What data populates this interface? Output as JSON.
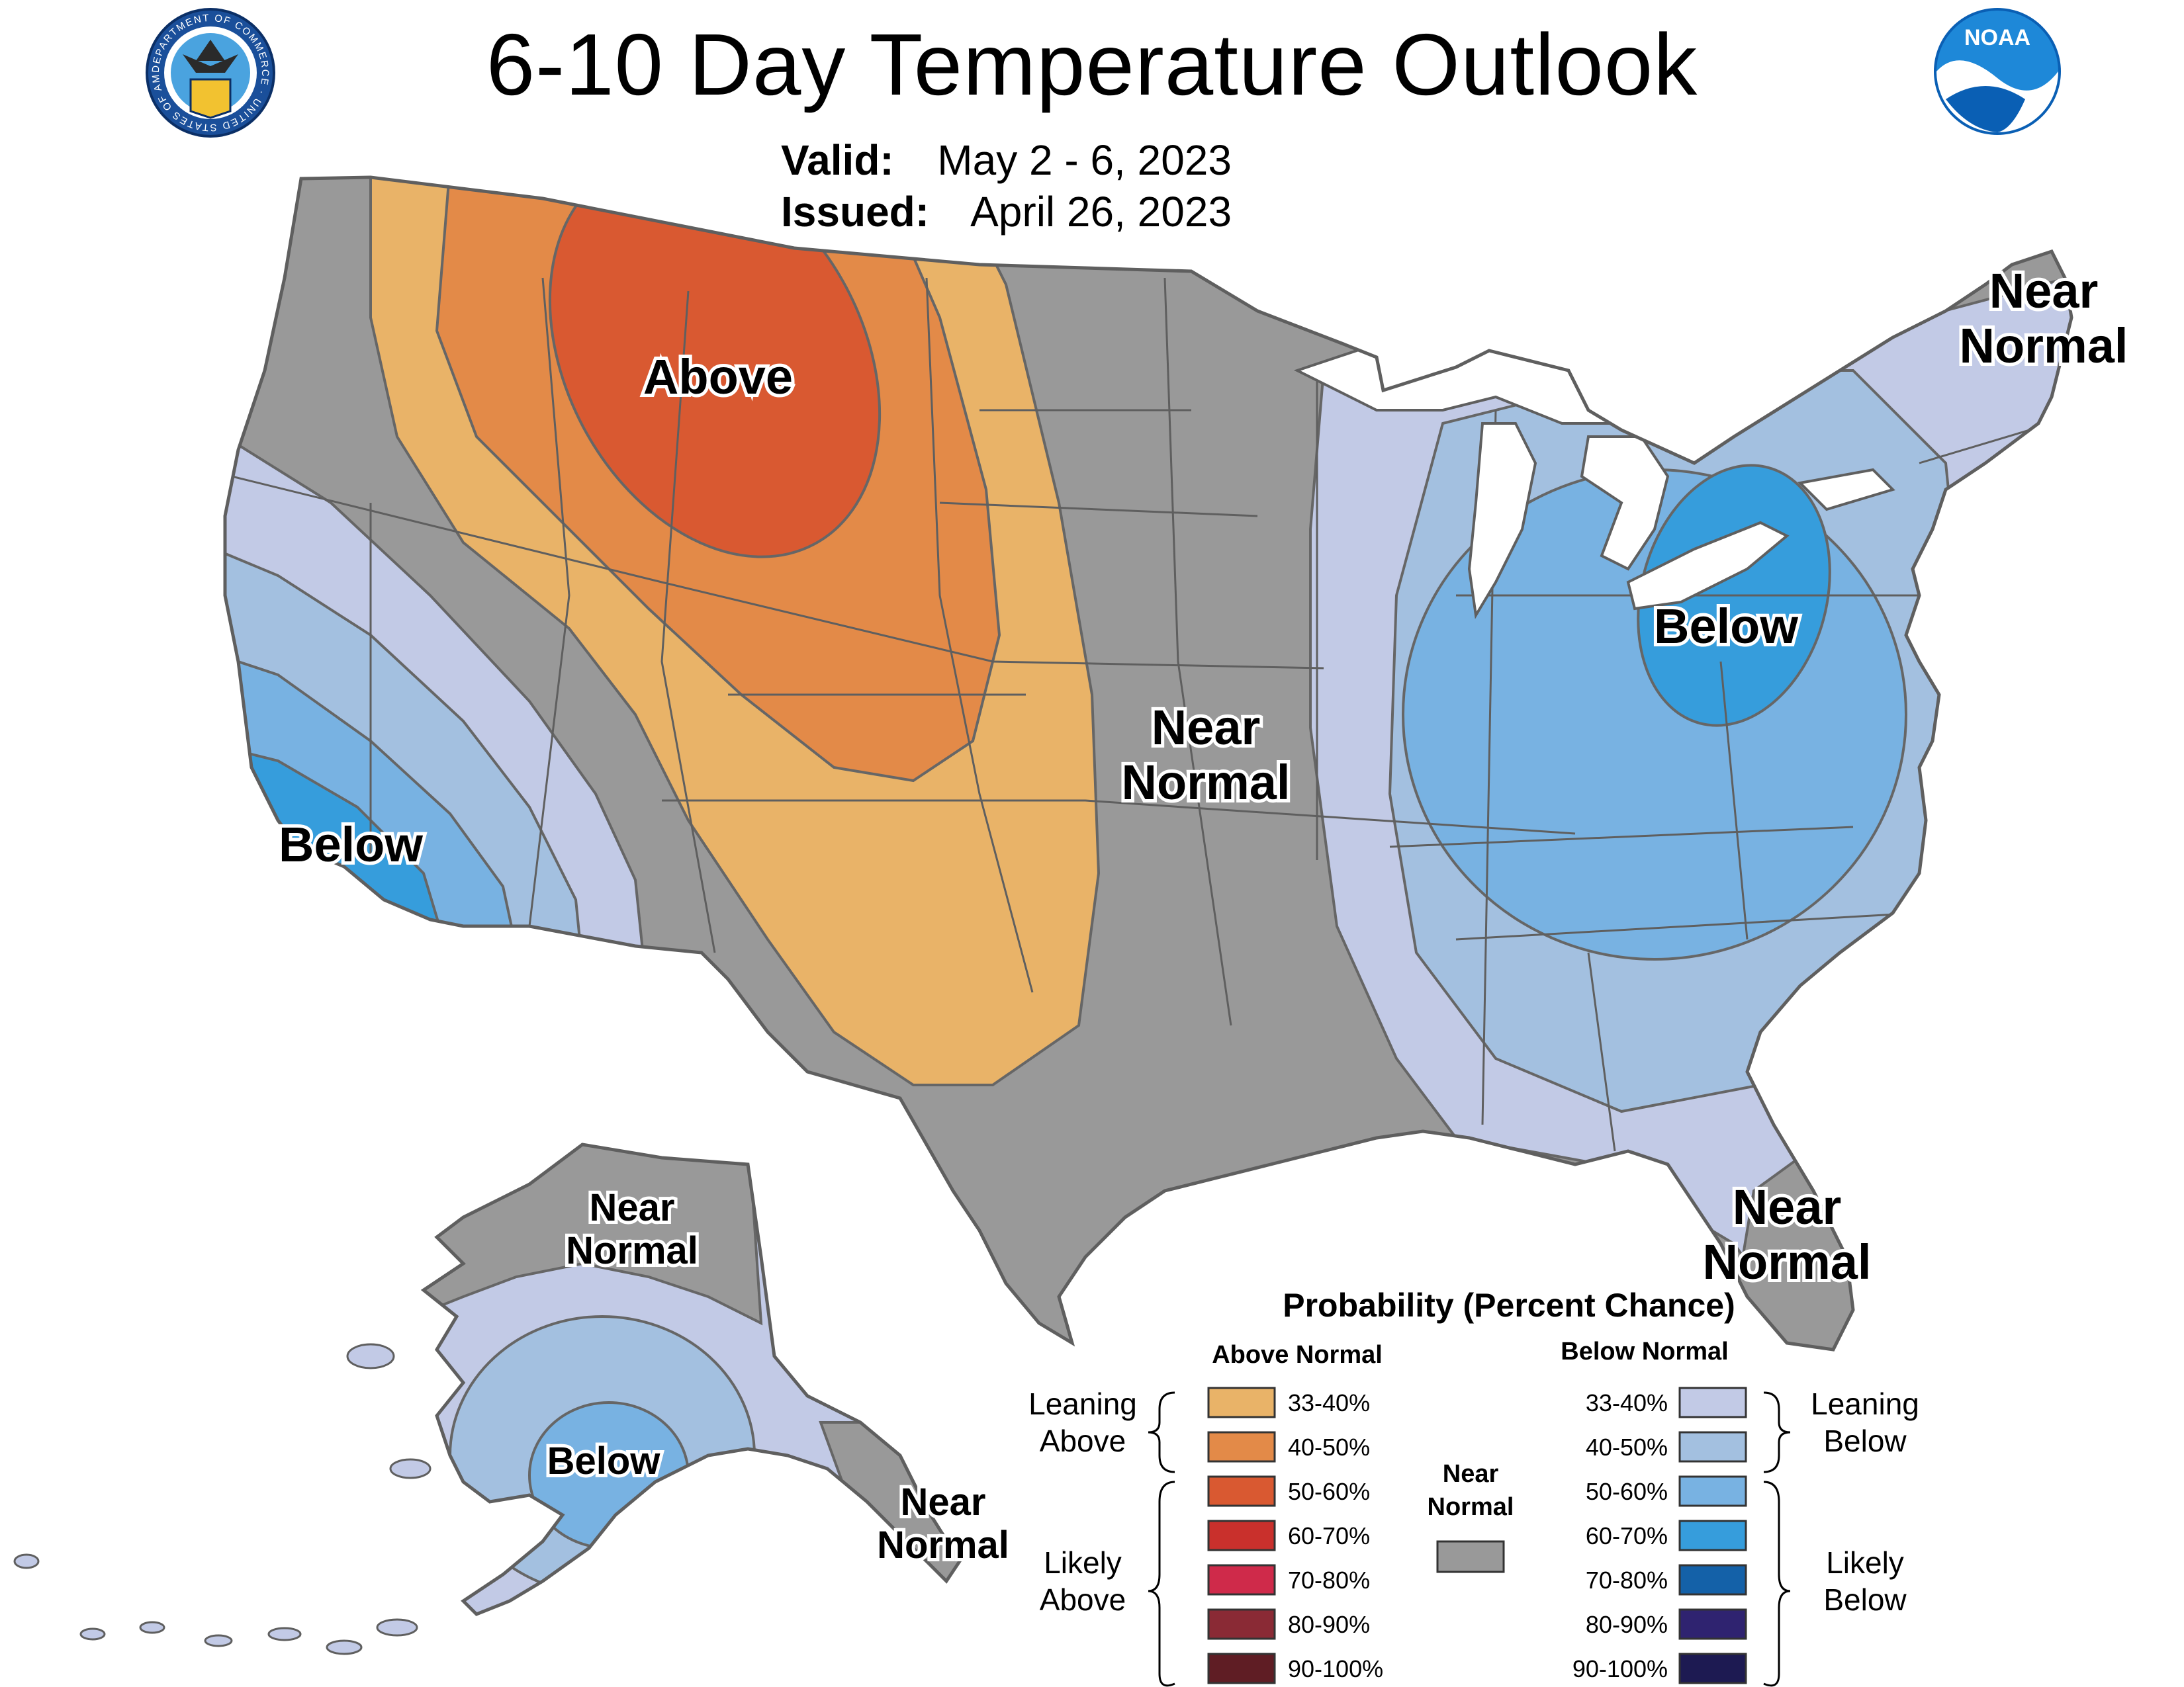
{
  "header": {
    "title": "6-10 Day Temperature Outlook",
    "valid_label": "Valid:",
    "valid_value": "May 2 - 6, 2023",
    "issued_label": "Issued:",
    "issued_value": "April 26, 2023"
  },
  "logos": {
    "left": {
      "name": "department-of-commerce-seal",
      "text": "DEPARTMENT OF COMMERCE · UNITED STATES OF AMERICA"
    },
    "right": {
      "name": "noaa-logo",
      "text": "NOAA"
    }
  },
  "map": {
    "region_labels": [
      {
        "id": "west-above",
        "text": [
          "Above"
        ]
      },
      {
        "id": "central-near-normal",
        "text": [
          "Near",
          "Normal"
        ]
      },
      {
        "id": "ohio-below",
        "text": [
          "Below"
        ]
      },
      {
        "id": "california-below",
        "text": [
          "Below"
        ]
      },
      {
        "id": "new-england-near-normal",
        "text": [
          "Near",
          "Normal"
        ]
      },
      {
        "id": "florida-near-normal",
        "text": [
          "Near",
          "Normal"
        ]
      },
      {
        "id": "alaska-north-near-normal",
        "text": [
          "Near",
          "Normal"
        ]
      },
      {
        "id": "alaska-below",
        "text": [
          "Below"
        ]
      },
      {
        "id": "alaska-southeast-near-normal",
        "text": [
          "Near",
          "Normal"
        ]
      }
    ],
    "colors": {
      "near_normal": "#999999",
      "above_33_40": "#e9b368",
      "above_40_50": "#e38a48",
      "above_50_60": "#d95931",
      "below_33_40": "#c2cae6",
      "below_40_50": "#a3c0e0",
      "below_50_60": "#78b2e2",
      "below_60_70": "#369ddc",
      "water": "#ffffff",
      "border": "#5f5f5f"
    }
  },
  "legend": {
    "title": "Probability (Percent Chance)",
    "above_header": "Above Normal",
    "below_header": "Below Normal",
    "near_label": [
      "Near",
      "Normal"
    ],
    "near_color": "#999999",
    "leaning_above": [
      "Leaning",
      "Above"
    ],
    "likely_above": [
      "Likely",
      "Above"
    ],
    "leaning_below": [
      "Leaning",
      "Below"
    ],
    "likely_below": [
      "Likely",
      "Below"
    ],
    "above": [
      {
        "label": "33-40%",
        "color": "#e9b368"
      },
      {
        "label": "40-50%",
        "color": "#e38a48"
      },
      {
        "label": "50-60%",
        "color": "#d95931"
      },
      {
        "label": "60-70%",
        "color": "#c9302c"
      },
      {
        "label": "70-80%",
        "color": "#cf2a4a"
      },
      {
        "label": "80-90%",
        "color": "#8a2a35"
      },
      {
        "label": "90-100%",
        "color": "#5f1d24"
      }
    ],
    "below": [
      {
        "label": "33-40%",
        "color": "#c2cae6"
      },
      {
        "label": "40-50%",
        "color": "#a3c0e0"
      },
      {
        "label": "50-60%",
        "color": "#78b2e2"
      },
      {
        "label": "60-70%",
        "color": "#369ddc"
      },
      {
        "label": "70-80%",
        "color": "#1461a8"
      },
      {
        "label": "80-90%",
        "color": "#2f2370"
      },
      {
        "label": "90-100%",
        "color": "#1d1a52"
      }
    ]
  }
}
